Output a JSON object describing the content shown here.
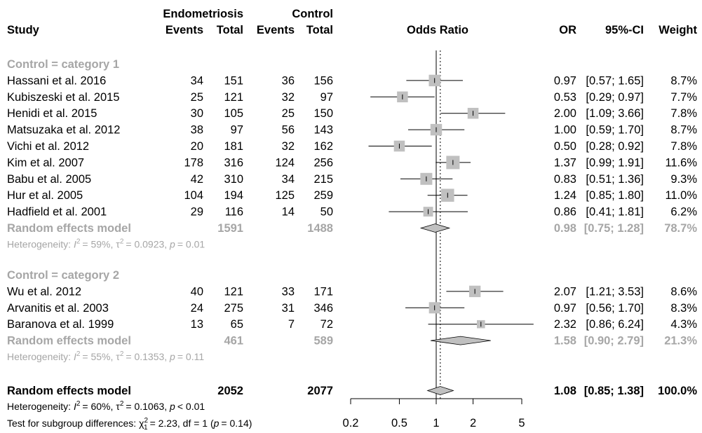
{
  "chart_data": {
    "type": "forest",
    "header": {
      "study": "Study",
      "group1": "Endometriosis",
      "group2": "Control",
      "events": "Events",
      "total": "Total",
      "plot_title": "Odds Ratio",
      "or": "OR",
      "ci": "95%-CI",
      "weight": "Weight"
    },
    "x_axis": {
      "scale": "log",
      "ticks": [
        0.2,
        0.5,
        1,
        2,
        5
      ],
      "tick_labels": [
        "0.2",
        "0.5",
        "1",
        "2",
        "5"
      ],
      "range": [
        0.2,
        5
      ],
      "reference": 1
    },
    "overall_or_line": 1.08,
    "subgroups": [
      {
        "label": "Control = category 1",
        "studies": [
          {
            "name": "Hassani et al. 2016",
            "e1": "34",
            "n1": "151",
            "e2": "36",
            "n2": "156",
            "or": 0.97,
            "lo": 0.57,
            "hi": 1.65,
            "w": 8.7,
            "or_txt": "0.97",
            "ci_txt": "[0.57; 1.65]",
            "w_txt": "8.7%"
          },
          {
            "name": "Kubiszeski et al. 2015",
            "e1": "25",
            "n1": "121",
            "e2": "32",
            "n2": "97",
            "or": 0.53,
            "lo": 0.29,
            "hi": 0.97,
            "w": 7.7,
            "or_txt": "0.53",
            "ci_txt": "[0.29; 0.97]",
            "w_txt": "7.7%"
          },
          {
            "name": "Henidi et al. 2015",
            "e1": "30",
            "n1": "105",
            "e2": "25",
            "n2": "150",
            "or": 2.0,
            "lo": 1.09,
            "hi": 3.66,
            "w": 7.8,
            "or_txt": "2.00",
            "ci_txt": "[1.09; 3.66]",
            "w_txt": "7.8%"
          },
          {
            "name": "Matsuzaka et al. 2012",
            "e1": "38",
            "n1": "97",
            "e2": "56",
            "n2": "143",
            "or": 1.0,
            "lo": 0.59,
            "hi": 1.7,
            "w": 8.7,
            "or_txt": "1.00",
            "ci_txt": "[0.59; 1.70]",
            "w_txt": "8.7%"
          },
          {
            "name": "Vichi et al. 2012",
            "e1": "20",
            "n1": "181",
            "e2": "32",
            "n2": "162",
            "or": 0.5,
            "lo": 0.28,
            "hi": 0.92,
            "w": 7.8,
            "or_txt": "0.50",
            "ci_txt": "[0.28; 0.92]",
            "w_txt": "7.8%"
          },
          {
            "name": "Kim et al. 2007",
            "e1": "178",
            "n1": "316",
            "e2": "124",
            "n2": "256",
            "or": 1.37,
            "lo": 0.99,
            "hi": 1.91,
            "w": 11.6,
            "or_txt": "1.37",
            "ci_txt": "[0.99; 1.91]",
            "w_txt": "11.6%"
          },
          {
            "name": "Babu et al. 2005",
            "e1": "42",
            "n1": "310",
            "e2": "34",
            "n2": "215",
            "or": 0.83,
            "lo": 0.51,
            "hi": 1.36,
            "w": 9.3,
            "or_txt": "0.83",
            "ci_txt": "[0.51; 1.36]",
            "w_txt": "9.3%"
          },
          {
            "name": "Hur et al. 2005",
            "e1": "104",
            "n1": "194",
            "e2": "125",
            "n2": "259",
            "or": 1.24,
            "lo": 0.85,
            "hi": 1.8,
            "w": 11.0,
            "or_txt": "1.24",
            "ci_txt": "[0.85; 1.80]",
            "w_txt": "11.0%"
          },
          {
            "name": "Hadfield et al. 2001",
            "e1": "29",
            "n1": "116",
            "e2": "14",
            "n2": "50",
            "or": 0.86,
            "lo": 0.41,
            "hi": 1.81,
            "w": 6.2,
            "or_txt": "0.86",
            "ci_txt": "[0.41; 1.81]",
            "w_txt": "6.2%"
          }
        ],
        "pooled": {
          "label": "Random effects model",
          "n1": "1591",
          "n2": "1488",
          "or": 0.98,
          "lo": 0.75,
          "hi": 1.28,
          "or_txt": "0.98",
          "ci_txt": "[0.75; 1.28]",
          "w_txt": "78.7%"
        },
        "het": {
          "prefix": "Heterogeneity: ",
          "i2": "= 59%, ",
          "tau2": "= 0.0923, ",
          "p": "= 0.01"
        }
      },
      {
        "label": "Control = category 2",
        "studies": [
          {
            "name": "Wu et al. 2012",
            "e1": "40",
            "n1": "121",
            "e2": "33",
            "n2": "171",
            "or": 2.07,
            "lo": 1.21,
            "hi": 3.53,
            "w": 8.6,
            "or_txt": "2.07",
            "ci_txt": "[1.21; 3.53]",
            "w_txt": "8.6%"
          },
          {
            "name": "Arvanitis et al. 2003",
            "e1": "24",
            "n1": "275",
            "e2": "31",
            "n2": "346",
            "or": 0.97,
            "lo": 0.56,
            "hi": 1.7,
            "w": 8.3,
            "or_txt": "0.97",
            "ci_txt": "[0.56; 1.70]",
            "w_txt": "8.3%"
          },
          {
            "name": "Baranova et al. 1999",
            "e1": "13",
            "n1": "65",
            "e2": "7",
            "n2": "72",
            "or": 2.32,
            "lo": 0.86,
            "hi": 6.24,
            "w": 4.3,
            "or_txt": "2.32",
            "ci_txt": "[0.86; 6.24]",
            "w_txt": "4.3%"
          }
        ],
        "pooled": {
          "label": "Random effects model",
          "n1": "461",
          "n2": "589",
          "or": 1.58,
          "lo": 0.9,
          "hi": 2.79,
          "or_txt": "1.58",
          "ci_txt": "[0.90; 2.79]",
          "w_txt": "21.3%"
        },
        "het": {
          "prefix": "Heterogeneity: ",
          "i2": "= 55%, ",
          "tau2": "= 0.1353, ",
          "p": "= 0.11"
        }
      }
    ],
    "overall": {
      "label": "Random effects model",
      "n1": "2052",
      "n2": "2077",
      "or": 1.08,
      "lo": 0.85,
      "hi": 1.38,
      "or_txt": "1.08",
      "ci_txt": "[0.85; 1.38]",
      "w_txt": "100.0%"
    },
    "overall_het": {
      "prefix": "Heterogeneity: ",
      "i2": "= 60%, ",
      "tau2": "= 0.1063, ",
      "p": "< 0.01"
    },
    "subgroup_test": {
      "prefix": "Test for subgroup differences: ",
      "chi": "= 2.23, df = 1 (",
      "p": "= 0.14)"
    },
    "colors": {
      "box": "#c0c0c0",
      "diamond": "#c0c0c0",
      "pooled_text": "#a6a6a6",
      "line": "#000000"
    }
  }
}
